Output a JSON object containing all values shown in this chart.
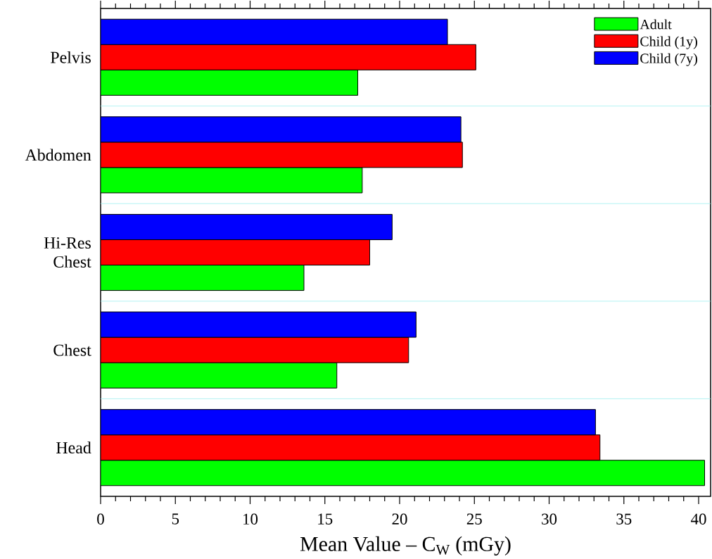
{
  "chart_data": {
    "type": "bar",
    "orientation": "horizontal",
    "xlabel": "Mean Value – C$_{W}$ (mGy)",
    "categories": [
      "Pelvis",
      "Abdomen",
      "Hi-Res Chest",
      "Chest",
      "Head"
    ],
    "series": [
      {
        "name": "Adult",
        "color": "#00ff00",
        "values": [
          17.2,
          17.5,
          13.6,
          15.8,
          40.4
        ]
      },
      {
        "name": "Child (1y)",
        "color": "#ff0000",
        "values": [
          25.1,
          24.2,
          18.0,
          20.6,
          33.4
        ]
      },
      {
        "name": "Child (7y)",
        "color": "#0000ff",
        "values": [
          23.2,
          24.1,
          19.5,
          21.1,
          33.1
        ]
      }
    ],
    "xlim": [
      0,
      40.8
    ],
    "xticks": [
      0,
      5,
      10,
      15,
      20,
      25,
      30,
      35,
      40
    ],
    "grid": "y",
    "legend": "top right"
  }
}
